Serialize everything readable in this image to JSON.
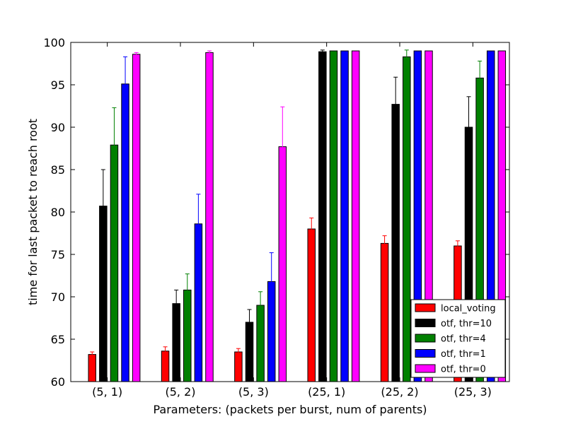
{
  "chart_data": {
    "type": "bar",
    "xlabel": "Parameters: (packets per burst, num of parents)",
    "ylabel": "time for last packet to reach root",
    "ylim": [
      60,
      100
    ],
    "yticks": [
      60,
      65,
      70,
      75,
      80,
      85,
      90,
      95,
      100
    ],
    "categories": [
      "(5, 1)",
      "(5, 2)",
      "(5, 3)",
      "(25, 1)",
      "(25, 2)",
      "(25, 3)"
    ],
    "legend_position": "lower-right",
    "grid": false,
    "series": [
      {
        "name": "local_voting",
        "color": "#ff0000",
        "values": [
          63.2,
          63.6,
          63.5,
          78.0,
          76.3,
          76.0
        ],
        "errors": [
          0.3,
          0.5,
          0.4,
          1.3,
          0.9,
          0.6
        ]
      },
      {
        "name": "otf, thr=10",
        "color": "#000000",
        "values": [
          80.7,
          69.2,
          67.0,
          98.9,
          92.7,
          90.0
        ],
        "errors": [
          4.3,
          1.6,
          1.5,
          0.2,
          3.2,
          3.6
        ]
      },
      {
        "name": "otf, thr=4",
        "color": "#008000",
        "values": [
          87.9,
          70.8,
          69.0,
          99.0,
          98.3,
          95.8
        ],
        "errors": [
          4.4,
          1.9,
          1.6,
          0.0,
          0.8,
          2.0
        ]
      },
      {
        "name": "otf, thr=1",
        "color": "#0000ff",
        "values": [
          95.1,
          78.6,
          71.8,
          99.0,
          99.0,
          99.0
        ],
        "errors": [
          3.2,
          3.5,
          3.4,
          0.0,
          0.0,
          0.0
        ]
      },
      {
        "name": "otf, thr=0",
        "color": "#ff00ff",
        "values": [
          98.6,
          98.8,
          87.7,
          99.0,
          99.0,
          99.0
        ],
        "errors": [
          0.2,
          0.2,
          4.7,
          0.0,
          0.0,
          0.0
        ]
      }
    ]
  }
}
